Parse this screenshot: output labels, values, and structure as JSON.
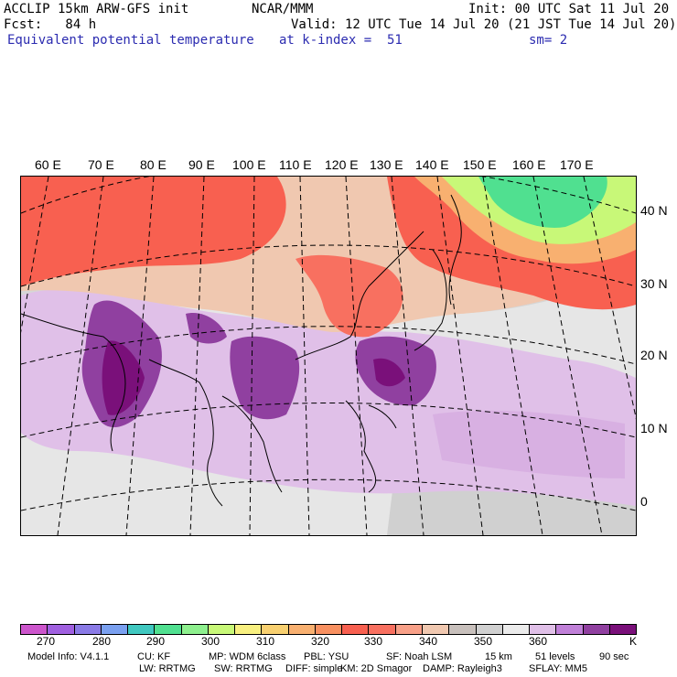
{
  "header": {
    "model": "ACCLIP 15km ARW-GFS init",
    "center": "NCAR/MMM",
    "init": "Init: 00 UTC Sat 11 Jul 20",
    "fcst": "Fcst:   84 h",
    "valid": "Valid: 12 UTC Tue 14 Jul 20 (21 JST Tue 14 Jul 20)",
    "field": "Equivalent potential temperature",
    "level": "at k-index =  51",
    "smooth": "sm= 2"
  },
  "map": {
    "lon_labels": [
      "60 E",
      "70 E",
      "80 E",
      "90 E",
      "100 E",
      "110 E",
      "120 E",
      "130 E",
      "140 E",
      "150 E",
      "160 E",
      "170 E"
    ],
    "lat_labels": [
      "40 N",
      "30 N",
      "20 N",
      "10 N",
      "0"
    ]
  },
  "colorbar": {
    "colors": [
      "#cc55cc",
      "#a060e0",
      "#8a7ae6",
      "#7aa0f0",
      "#40c8c0",
      "#50e090",
      "#8ef08e",
      "#c8f878",
      "#f8f080",
      "#f8d070",
      "#f8b070",
      "#f89060",
      "#f86050",
      "#f87060",
      "#f8a088",
      "#f0c8b0",
      "#c8c0bc",
      "#d0d0d0",
      "#ebebeb",
      "#e0c0e8",
      "#c080d8",
      "#9040a0",
      "#7a107a"
    ],
    "tick_labels": [
      "270",
      "280",
      "290",
      "300",
      "310",
      "320",
      "330",
      "340",
      "350",
      "360"
    ],
    "unit": "K"
  },
  "footer": {
    "line1": [
      "Model Info: V4.1.1",
      "CU: KF",
      "MP: WDM 6class",
      "PBL: YSU",
      "SF: Noah LSM",
      "15 km",
      "51 levels",
      "90 sec"
    ],
    "line2": [
      "LW: RRTMG",
      "SW: RRTMG",
      "DIFF: simple",
      "KM: 2D Smagor",
      "DAMP: Rayleigh3",
      "SFLAY: MM5"
    ]
  }
}
